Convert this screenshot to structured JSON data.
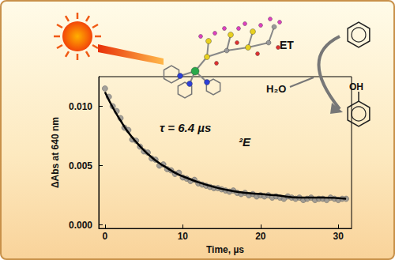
{
  "chart_data": {
    "type": "scatter",
    "x_label": "Time, µs",
    "y_label": "ΔAbs at 640 nm",
    "xlim": [
      -0.8,
      31.7
    ],
    "ylim": [
      -0.0003,
      0.0125
    ],
    "xticks": [
      0,
      10,
      20,
      30
    ],
    "yticks": [
      {
        "value": 0,
        "label": "0.000"
      },
      0.005,
      {
        "value": 0.01,
        "label": "0.010"
      }
    ],
    "grid": false,
    "series": [
      {
        "type": "scatter",
        "color": "#8c8c8c",
        "marker": "circle",
        "x": [
          0,
          0.5,
          1,
          1.5,
          2,
          2.5,
          3,
          3.5,
          4,
          4.5,
          5,
          5.5,
          6,
          6.5,
          7,
          7.5,
          8,
          8.5,
          9,
          9.5,
          10,
          10.5,
          11,
          11.5,
          12,
          12.5,
          13,
          13.5,
          14,
          14.5,
          15,
          15.5,
          16,
          16.5,
          17,
          17.5,
          18,
          18.5,
          19,
          19.5,
          20,
          20.5,
          21,
          21.5,
          22,
          22.5,
          23,
          23.5,
          24,
          24.5,
          25,
          25.5,
          26,
          26.5,
          27,
          27.5,
          28,
          28.5,
          29,
          29.5,
          30,
          30.5,
          31
        ],
        "values": [
          0.0115,
          0.0108,
          0.01,
          0.0096,
          0.009,
          0.0082,
          0.008,
          0.0072,
          0.0071,
          0.0066,
          0.0062,
          0.0061,
          0.0056,
          0.0055,
          0.005,
          0.0051,
          0.0047,
          0.0046,
          0.0043,
          0.0044,
          0.004,
          0.0039,
          0.0037,
          0.0038,
          0.0035,
          0.0034,
          0.0033,
          0.0032,
          0.0031,
          0.0031,
          0.003,
          0.0029,
          0.0028,
          0.0029,
          0.0027,
          0.0026,
          0.0027,
          0.0025,
          0.0026,
          0.0024,
          0.0025,
          0.0024,
          0.0025,
          0.0023,
          0.0024,
          0.0023,
          0.0022,
          0.0024,
          0.0023,
          0.0022,
          0.0023,
          0.0021,
          0.0022,
          0.0023,
          0.0021,
          0.0022,
          0.0022,
          0.0021,
          0.0023,
          0.0022,
          0.0021,
          0.0022,
          0.0022
        ]
      },
      {
        "type": "line",
        "color": "#000000",
        "line_style": "solid",
        "x": [
          0,
          1,
          2,
          3,
          4,
          5,
          6,
          7,
          8,
          9,
          10,
          12,
          14,
          16,
          18,
          20,
          22,
          25,
          28,
          31
        ],
        "values": [
          0.0112,
          0.0099,
          0.0088,
          0.0078,
          0.007,
          0.0063,
          0.0057,
          0.0052,
          0.0048,
          0.0044,
          0.0041,
          0.0036,
          0.0032,
          0.0029,
          0.0027,
          0.0026,
          0.0025,
          0.0023,
          0.0023,
          0.0022
        ]
      }
    ],
    "annotations": [
      "τ = 6.4 µs",
      "²E",
      "ET",
      "H₂O",
      "OH"
    ]
  }
}
